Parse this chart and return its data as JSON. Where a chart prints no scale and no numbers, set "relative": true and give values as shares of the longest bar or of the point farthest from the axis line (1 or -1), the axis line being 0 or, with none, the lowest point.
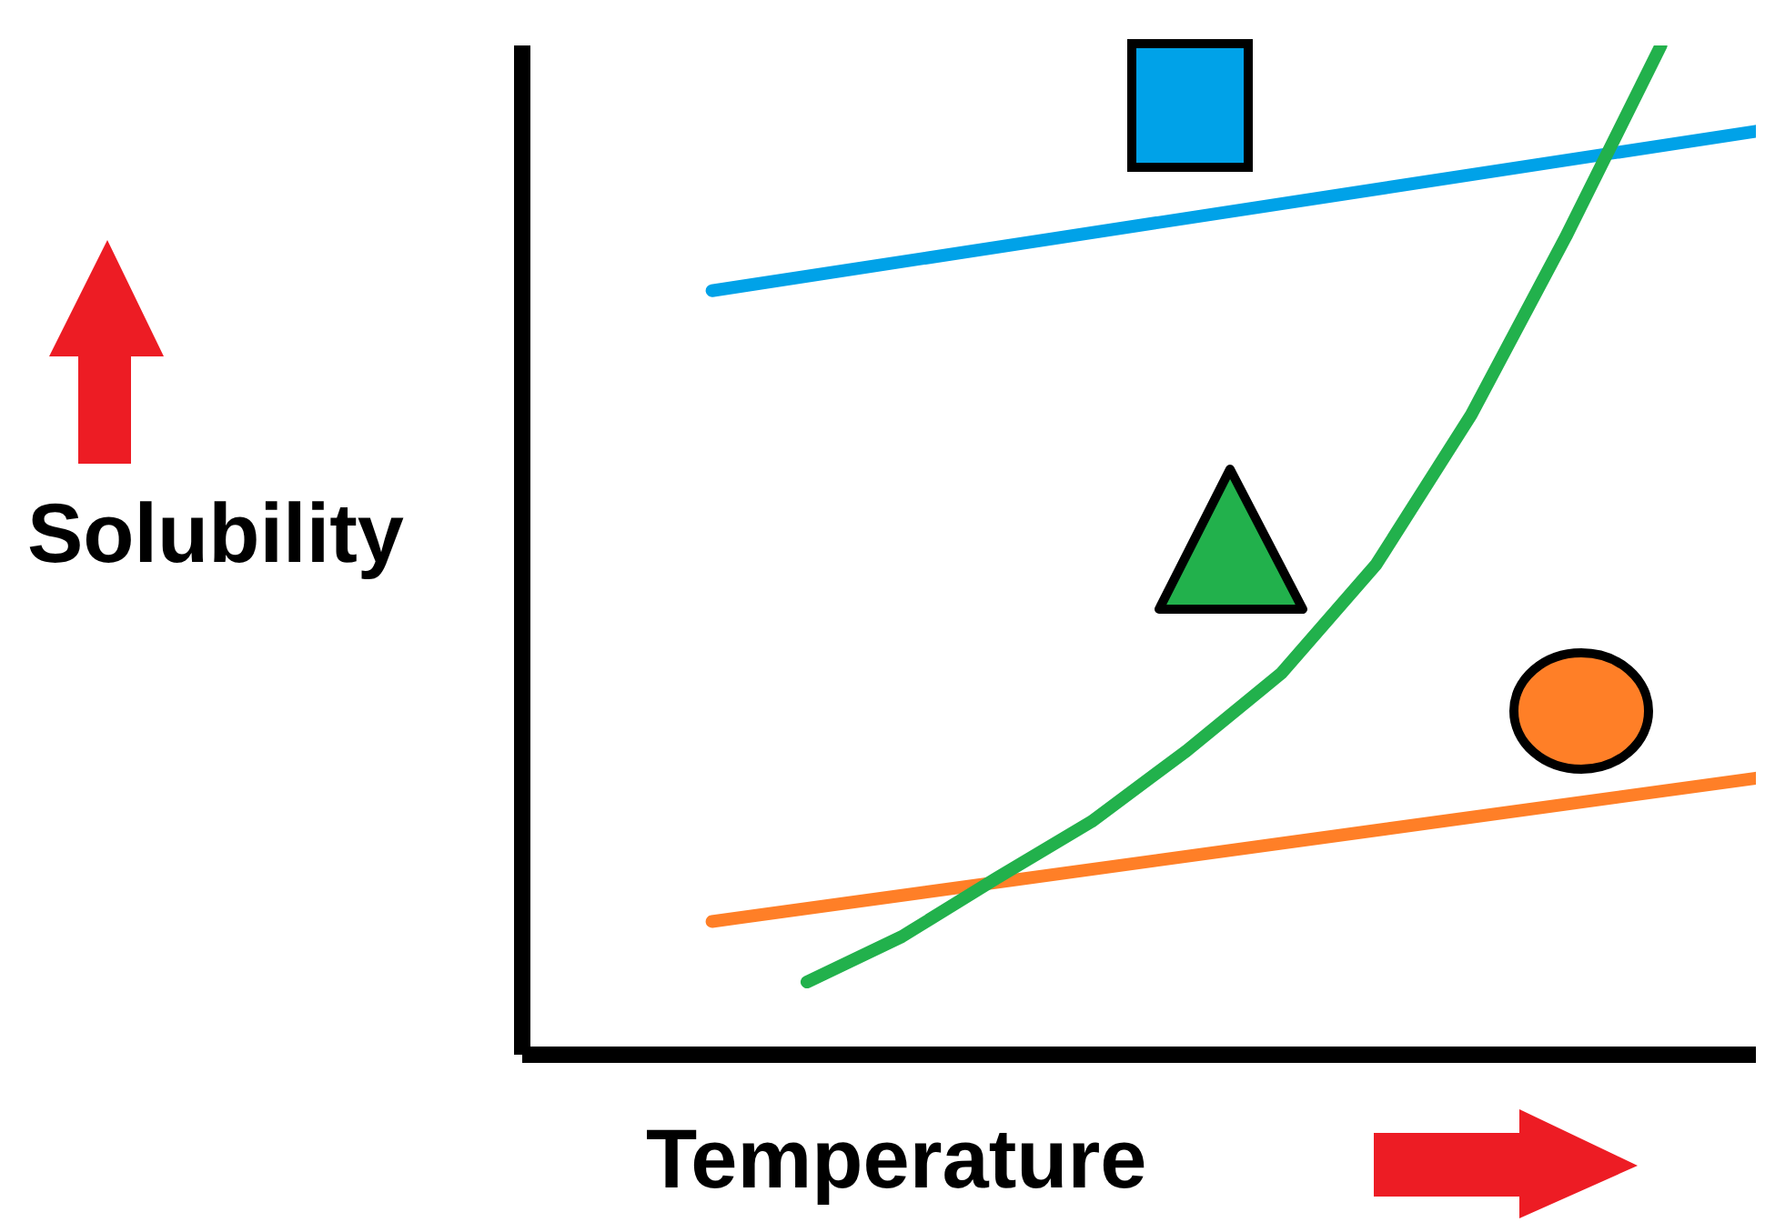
{
  "chart_data": {
    "type": "line",
    "relative": true,
    "xlabel": "Temperature",
    "ylabel": "Solubility",
    "categories": [
      null,
      null,
      null,
      null,
      null,
      null,
      null,
      null,
      null,
      null,
      null,
      null,
      null,
      null
    ],
    "series": [
      {
        "color": "#00a2e8",
        "values": [
          null,
          null,
          0.757,
          null,
          null,
          null,
          null,
          null,
          null,
          null,
          null,
          null,
          null,
          0.915
        ]
      },
      {
        "color": "#ff7f27",
        "values": [
          null,
          null,
          0.132,
          null,
          null,
          null,
          null,
          null,
          null,
          null,
          null,
          null,
          null,
          0.274
        ]
      },
      {
        "color": "#22b14c",
        "values": [
          null,
          null,
          null,
          0.072,
          0.117,
          0.175,
          0.231,
          0.301,
          0.378,
          0.486,
          0.634,
          0.811,
          1,
          null
        ]
      }
    ],
    "marker": "none",
    "line_style": "solid",
    "grid": false,
    "legend": false
  }
}
